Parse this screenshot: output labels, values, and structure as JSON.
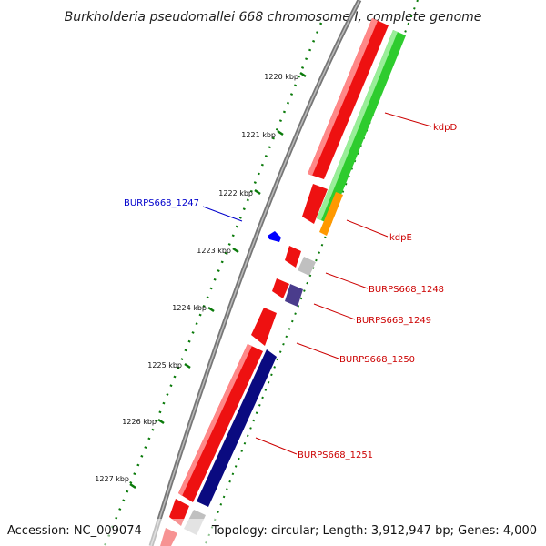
{
  "title": "Burkholderia pseudomallei 668 chromosome I, complete genome",
  "footer": {
    "accession": "Accession: NC_009074",
    "topology": "Topology: circular; Length: 3,912,947 bp; Genes: 4,000"
  },
  "ticks": [
    {
      "label": "1220 kbp"
    },
    {
      "label": "1221 kbp"
    },
    {
      "label": "1222 kbp"
    },
    {
      "label": "1223 kbp"
    },
    {
      "label": "1224 kbp"
    },
    {
      "label": "1225 kbp"
    },
    {
      "label": "1226 kbp"
    },
    {
      "label": "1227 kbp"
    }
  ],
  "labels": {
    "burps668_1247": "BURPS668_1247",
    "kdpD": "kdpD",
    "kdpE": "kdpE",
    "burps668_1248": "BURPS668_1248",
    "burps668_1249": "BURPS668_1249",
    "burps668_1250": "BURPS668_1250",
    "burps668_1251": "BURPS668_1251"
  },
  "colors": {
    "forward_feature": "#ee1111",
    "reverse_feature": "#2ecc2e",
    "green_highlight": "#99ee99",
    "orange_feature": "#ff9900",
    "navy_feature": "#0a0a80",
    "purple_feature": "#4a3c8c",
    "gray_feature": "#c0c0c0",
    "blue_feature": "#0000ff",
    "backbone": "#808080",
    "tick_green": "#0a7a0a",
    "label_red": "#cc0000",
    "label_blue": "#0000cc"
  }
}
